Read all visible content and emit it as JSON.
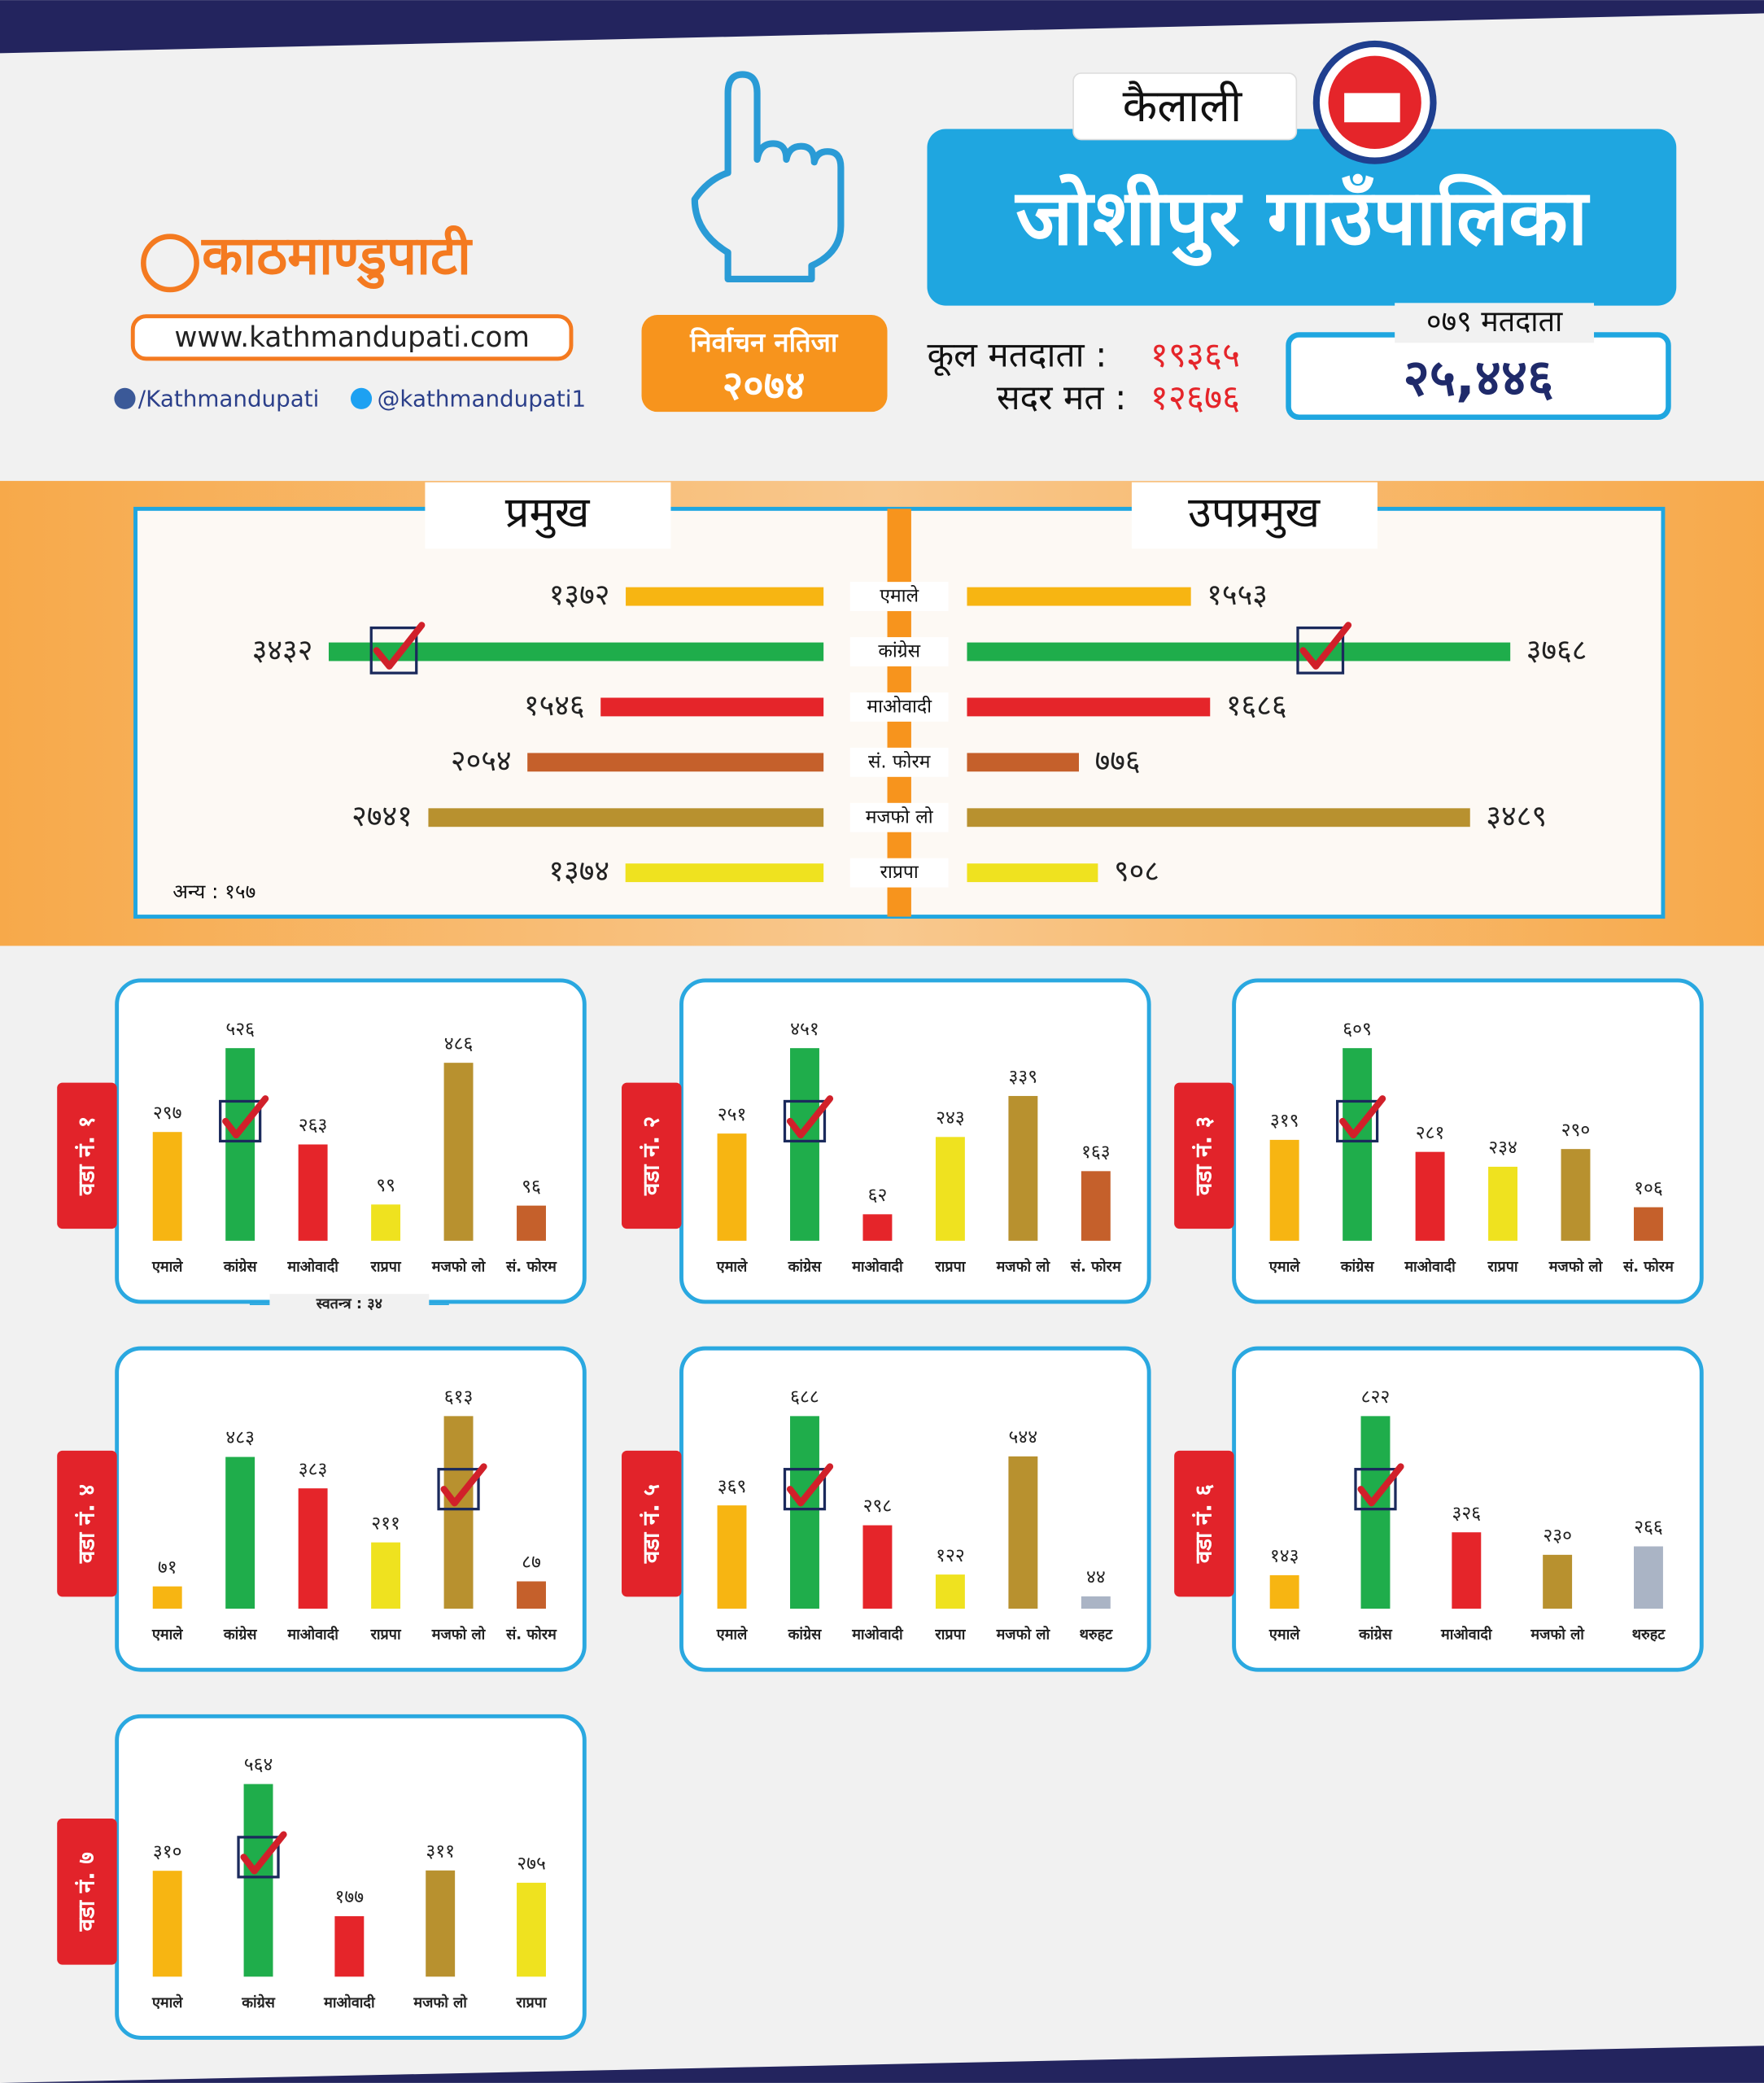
{
  "header": {
    "district": "कैलाली",
    "municipality": "जोशीपुर गाउँपालिका",
    "logo_name": "काठमाण्डुपाटी",
    "website": "www.kathmandupati.com",
    "facebook": "/Kathmandupati",
    "twitter": "@kathmandupati1",
    "badge_line1": "निर्वाचन नतिजा",
    "badge_line2": "२०७४"
  },
  "summary": {
    "total_voters_label": "कूल मतदाता :",
    "total_voters": "१९३६५",
    "valid_votes_label": "सदर मत :",
    "valid_votes": "१२६७६",
    "voters_079_label": "०७९ मतदाता",
    "voters_079": "२५,४४६"
  },
  "chart_data": [
    {
      "type": "butterfly",
      "categories": [
        "एमाले",
        "कांग्रेस",
        "माओवादी",
        "सं. फोरम",
        "मजफो लो",
        "राप्रपा"
      ],
      "colors": [
        "#f7b512",
        "#1fad4b",
        "#e5252a",
        "#c5602b",
        "#b8912f",
        "#efe21f"
      ],
      "series": [
        {
          "name": "प्रमुख",
          "values": [
            1372,
            3432,
            1546,
            2054,
            2741,
            1374
          ],
          "value_labels": [
            "१३७२",
            "३४३२",
            "१५४६",
            "२०५४",
            "२७४१",
            "१३७४"
          ]
        },
        {
          "name": "उपप्रमुख",
          "values": [
            1553,
            3768,
            1686,
            776,
            3489,
            908
          ],
          "value_labels": [
            "१५५३",
            "३७६८",
            "१६८६",
            "७७६",
            "३४८९",
            "९०८"
          ]
        }
      ],
      "winner_index": 1,
      "annotation": "अन्य : १५७"
    },
    {
      "type": "bar",
      "title": "वडा नं. १",
      "categories": [
        "एमाले",
        "कांग्रेस",
        "माओवादी",
        "राप्रपा",
        "मजफो लो",
        "सं. फोरम"
      ],
      "colors": [
        "#f7b512",
        "#1fad4b",
        "#e5252a",
        "#efe21f",
        "#b8912f",
        "#c5602b"
      ],
      "values": [
        297,
        526,
        263,
        99,
        486,
        96
      ],
      "value_labels": [
        "२९७",
        "५२६",
        "२६३",
        "९९",
        "४८६",
        "९६"
      ],
      "winner_index": 1,
      "annotation": "स्वतन्त्र : ३४"
    },
    {
      "type": "bar",
      "title": "वडा नं. २",
      "categories": [
        "एमाले",
        "कांग्रेस",
        "माओवादी",
        "राप्रपा",
        "मजफो लो",
        "सं. फोरम"
      ],
      "colors": [
        "#f7b512",
        "#1fad4b",
        "#e5252a",
        "#efe21f",
        "#b8912f",
        "#c5602b"
      ],
      "values": [
        251,
        451,
        62,
        243,
        339,
        163
      ],
      "value_labels": [
        "२५१",
        "४५१",
        "६२",
        "२४३",
        "३३९",
        "१६३"
      ],
      "winner_index": 1
    },
    {
      "type": "bar",
      "title": "वडा नं. ३",
      "categories": [
        "एमाले",
        "कांग्रेस",
        "माओवादी",
        "राप्रपा",
        "मजफो लो",
        "सं. फोरम"
      ],
      "colors": [
        "#f7b512",
        "#1fad4b",
        "#e5252a",
        "#efe21f",
        "#b8912f",
        "#c5602b"
      ],
      "values": [
        319,
        609,
        281,
        234,
        290,
        106
      ],
      "value_labels": [
        "३१९",
        "६०९",
        "२८१",
        "२३४",
        "२९०",
        "१०६"
      ],
      "winner_index": 1
    },
    {
      "type": "bar",
      "title": "वडा नं. ४",
      "categories": [
        "एमाले",
        "कांग्रेस",
        "माओवादी",
        "राप्रपा",
        "मजफो लो",
        "सं. फोरम"
      ],
      "colors": [
        "#f7b512",
        "#1fad4b",
        "#e5252a",
        "#efe21f",
        "#b8912f",
        "#c5602b"
      ],
      "values": [
        71,
        483,
        383,
        211,
        613,
        87
      ],
      "value_labels": [
        "७१",
        "४८३",
        "३८३",
        "२११",
        "६१३",
        "८७"
      ],
      "winner_index": 4
    },
    {
      "type": "bar",
      "title": "वडा नं. ५",
      "categories": [
        "एमाले",
        "कांग्रेस",
        "माओवादी",
        "राप्रपा",
        "मजफो लो",
        "थरुहट"
      ],
      "colors": [
        "#f7b512",
        "#1fad4b",
        "#e5252a",
        "#efe21f",
        "#b8912f",
        "#aab4c5"
      ],
      "values": [
        369,
        688,
        298,
        122,
        544,
        44
      ],
      "value_labels": [
        "३६९",
        "६८८",
        "२९८",
        "१२२",
        "५४४",
        "४४"
      ],
      "winner_index": 1
    },
    {
      "type": "bar",
      "title": "वडा नं. ६",
      "categories": [
        "एमाले",
        "कांग्रेस",
        "माओवादी",
        "मजफो लो",
        "थरुहट"
      ],
      "colors": [
        "#f7b512",
        "#1fad4b",
        "#e5252a",
        "#b8912f",
        "#aab4c5"
      ],
      "values": [
        143,
        822,
        326,
        230,
        266
      ],
      "value_labels": [
        "१४३",
        "८२२",
        "३२६",
        "२३०",
        "२६६"
      ],
      "winner_index": 1
    },
    {
      "type": "bar",
      "title": "वडा नं. ७",
      "categories": [
        "एमाले",
        "कांग्रेस",
        "माओवादी",
        "मजफो लो",
        "राप्रपा"
      ],
      "colors": [
        "#f7b512",
        "#1fad4b",
        "#e5252a",
        "#b8912f",
        "#efe21f"
      ],
      "values": [
        310,
        564,
        177,
        311,
        275
      ],
      "value_labels": [
        "३१०",
        "५६४",
        "१७७",
        "३११",
        "२७५"
      ],
      "winner_index": 1
    }
  ]
}
